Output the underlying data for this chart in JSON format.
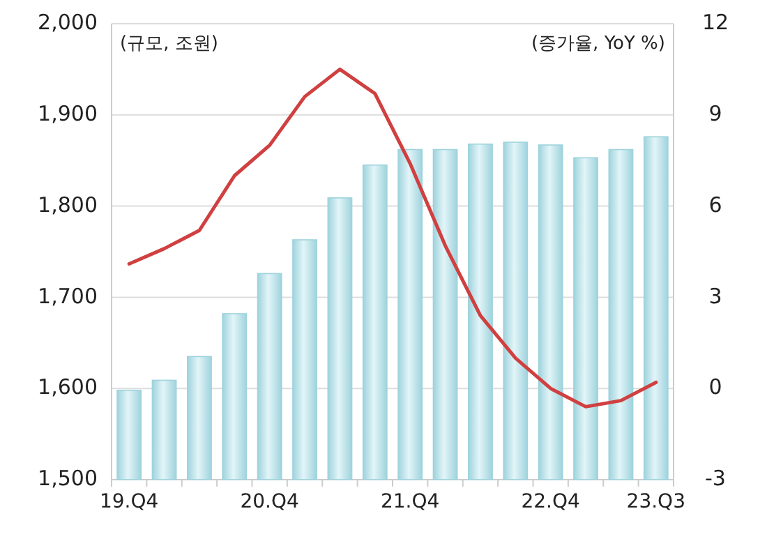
{
  "chart_data": {
    "type": "bar",
    "ylabel": "(규모, 조원)",
    "y2label": "(증가율, YoY %)",
    "categories": [
      "19.Q4",
      null,
      null,
      null,
      "20.Q4",
      null,
      null,
      null,
      "21.Q4",
      null,
      null,
      null,
      "22.Q4",
      null,
      null,
      "23.Q3"
    ],
    "series": [
      {
        "color": "#9fd3dd",
        "values": [
          1598,
          1609,
          1635,
          1682,
          1726,
          1763,
          1809,
          1845,
          1862,
          1862,
          1868,
          1870,
          1867,
          1853,
          1862,
          1876
        ]
      },
      {
        "type": "line",
        "axis": "y2",
        "color": "#d04040",
        "values": [
          4.1,
          4.6,
          5.2,
          7.0,
          8.0,
          9.6,
          10.5,
          9.7,
          7.4,
          4.7,
          2.4,
          1.0,
          0.0,
          -0.6,
          -0.4,
          0.2
        ]
      }
    ],
    "ylim": [
      1500,
      2000
    ],
    "yticks": [
      {
        "value": 1500,
        "label": "1,500"
      },
      {
        "value": 1600,
        "label": "1,600"
      },
      {
        "value": 1700,
        "label": "1,700"
      },
      {
        "value": 1800,
        "label": "1,800"
      },
      {
        "value": 1900,
        "label": "1,900"
      },
      {
        "value": 2000,
        "label": "2,000"
      }
    ],
    "y2lim": [
      -3,
      12
    ],
    "y2ticks": [
      -3,
      0,
      3,
      6,
      9,
      12
    ],
    "grid": "y"
  }
}
